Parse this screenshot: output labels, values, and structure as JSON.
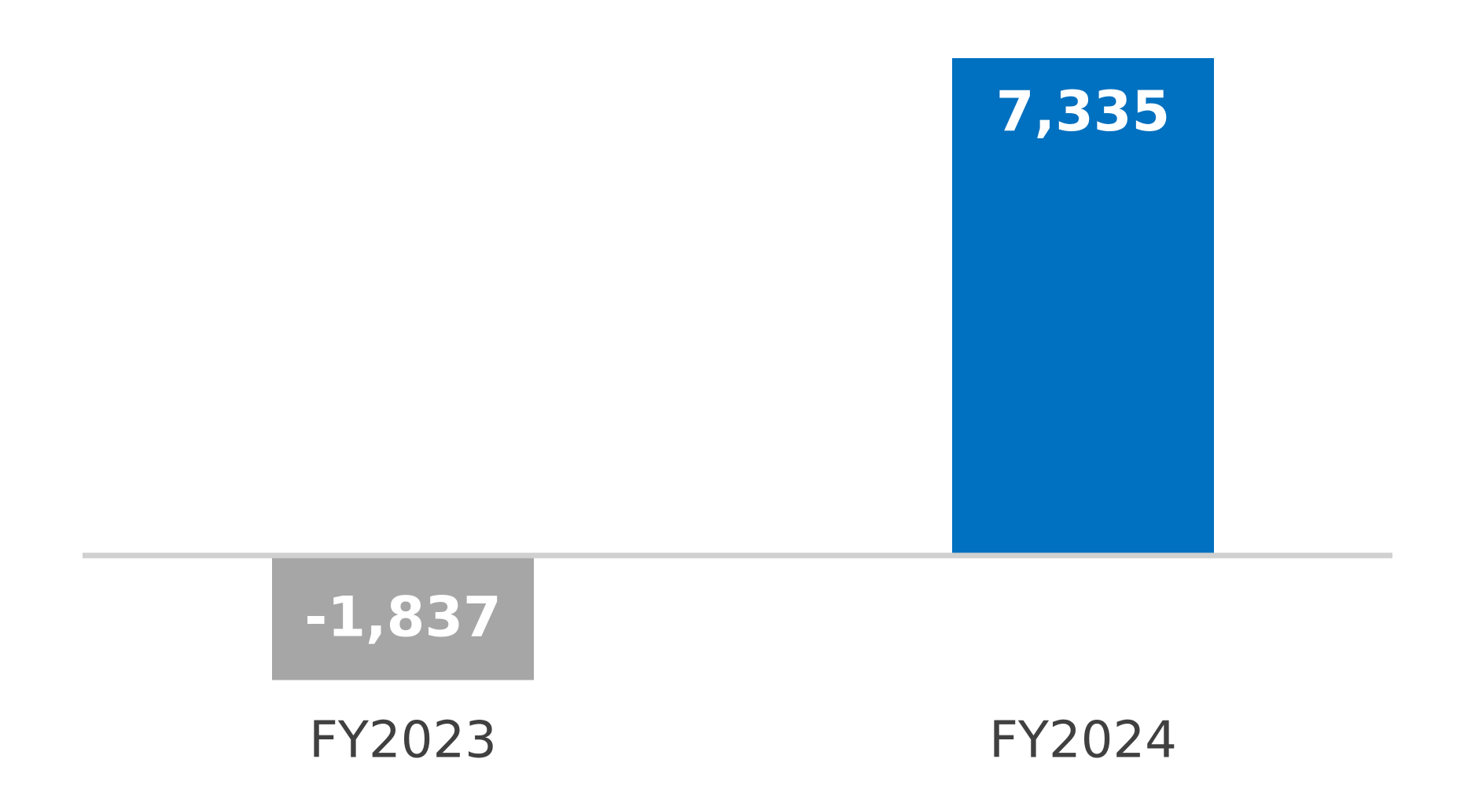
{
  "chart_data": {
    "type": "bar",
    "categories": [
      "FY2023",
      "FY2024"
    ],
    "values": [
      -1837,
      7335
    ],
    "value_labels": [
      "-1,837",
      "7,335"
    ],
    "colors": [
      "#a6a6a6",
      "#0070c0"
    ]
  }
}
